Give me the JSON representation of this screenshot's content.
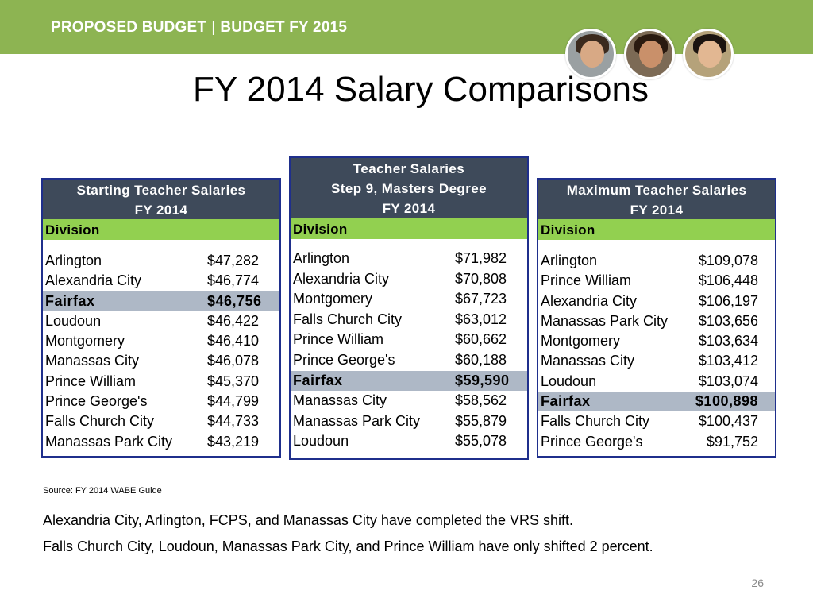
{
  "header": {
    "left": "PROPOSED BUDGET",
    "sep": "|",
    "right": "BUDGET FY 2015"
  },
  "title": "FY 2014 Salary Comparisons",
  "colors": {
    "banner": "#8db452",
    "panel_header": "#3e4a5a",
    "division_row": "#92d050",
    "highlight_row": "#aeb8c6",
    "panel_border": "#1f2f8c"
  },
  "panels": [
    {
      "title_lines": [
        "Starting Teacher Salaries",
        "FY 2014"
      ],
      "division_label": "Division",
      "rows": [
        {
          "name": "Arlington",
          "value": "$47,282"
        },
        {
          "name": "Alexandria City",
          "value": "$46,774"
        },
        {
          "name": "Fairfax",
          "value": "$46,756",
          "highlight": true
        },
        {
          "name": "Loudoun",
          "value": "$46,422"
        },
        {
          "name": "Montgomery",
          "value": "$46,410"
        },
        {
          "name": "Manassas City",
          "value": "$46,078"
        },
        {
          "name": "Prince William",
          "value": "$45,370"
        },
        {
          "name": "Prince George's",
          "value": "$44,799"
        },
        {
          "name": "Falls Church City",
          "value": "$44,733"
        },
        {
          "name": "Manassas Park City",
          "value": "$43,219"
        }
      ]
    },
    {
      "title_lines": [
        "Teacher Salaries",
        "Step 9, Masters Degree",
        "FY 2014"
      ],
      "division_label": "Division",
      "rows": [
        {
          "name": "Arlington",
          "value": "$71,982"
        },
        {
          "name": "Alexandria City",
          "value": "$70,808"
        },
        {
          "name": "Montgomery",
          "value": "$67,723"
        },
        {
          "name": "Falls Church City",
          "value": "$63,012"
        },
        {
          "name": "Prince William",
          "value": "$60,662"
        },
        {
          "name": "Prince George's",
          "value": "$60,188"
        },
        {
          "name": "Fairfax",
          "value": "$59,590",
          "highlight": true
        },
        {
          "name": "Manassas City",
          "value": "$58,562"
        },
        {
          "name": "Manassas Park City",
          "value": "$55,879"
        },
        {
          "name": "Loudoun",
          "value": "$55,078"
        }
      ]
    },
    {
      "title_lines": [
        "Maximum Teacher Salaries",
        "FY 2014"
      ],
      "division_label": "Division",
      "rows": [
        {
          "name": "Arlington",
          "value": "$109,078"
        },
        {
          "name": "Prince William",
          "value": "$106,448"
        },
        {
          "name": "Alexandria City",
          "value": "$106,197"
        },
        {
          "name": "Manassas Park City",
          "value": "$103,656"
        },
        {
          "name": "Montgomery",
          "value": "$103,634"
        },
        {
          "name": "Manassas City",
          "value": "$103,412"
        },
        {
          "name": "Loudoun",
          "value": "$103,074"
        },
        {
          "name": "Fairfax",
          "value": "$100,898",
          "highlight": true
        },
        {
          "name": "Falls Church City",
          "value": "$100,437"
        },
        {
          "name": "Prince George's",
          "value": "$91,752"
        }
      ]
    }
  ],
  "source": "Source:  FY 2014  WABE Guide",
  "notes": [
    "Alexandria City, Arlington, FCPS, and Manassas City have completed the VRS shift.",
    "Falls Church City, Loudoun, Manassas Park City, and Prince William have only shifted 2 percent."
  ],
  "page_number": "26"
}
